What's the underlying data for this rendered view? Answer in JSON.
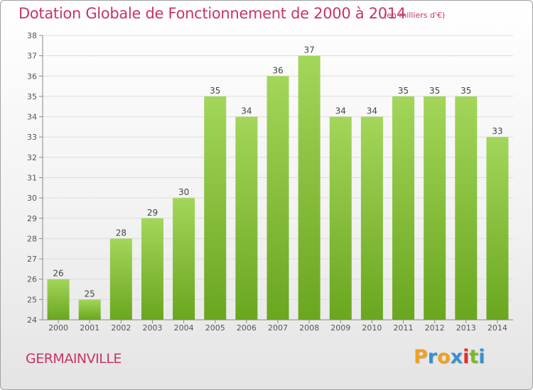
{
  "header": {
    "title": "Dotation Globale de Fonctionnement de 2000 à 2014",
    "subtitle": "(en milliers d'€)"
  },
  "footer": {
    "commune": "GERMAINVILLE",
    "logo_letters": [
      "P",
      "r",
      "o",
      "x",
      "i",
      "t",
      "i"
    ],
    "logo_colors": [
      "#f0a020",
      "#3a8fd0",
      "#f0a020",
      "#3a8fd0",
      "#e03030",
      "#7ab830",
      "#3a8fd0"
    ]
  },
  "colors": {
    "bar_light": "#a3d65a",
    "bar_dark": "#6aa61f",
    "text": "#c8336a",
    "grid": "#dddddd"
  },
  "chart_data": {
    "type": "bar",
    "categories": [
      "2000",
      "2001",
      "2002",
      "2003",
      "2004",
      "2005",
      "2006",
      "2007",
      "2008",
      "2009",
      "2010",
      "2011",
      "2012",
      "2013",
      "2014"
    ],
    "values": [
      26,
      25,
      28,
      29,
      30,
      35,
      34,
      36,
      37,
      34,
      34,
      35,
      35,
      35,
      33
    ],
    "title": "Dotation Globale de Fonctionnement de 2000 à 2014",
    "subtitle": "(en milliers d'€)",
    "ylim": [
      24,
      38
    ],
    "yticks": [
      24,
      25,
      26,
      27,
      28,
      29,
      30,
      31,
      32,
      33,
      34,
      35,
      36,
      37,
      38
    ],
    "grid": true
  }
}
